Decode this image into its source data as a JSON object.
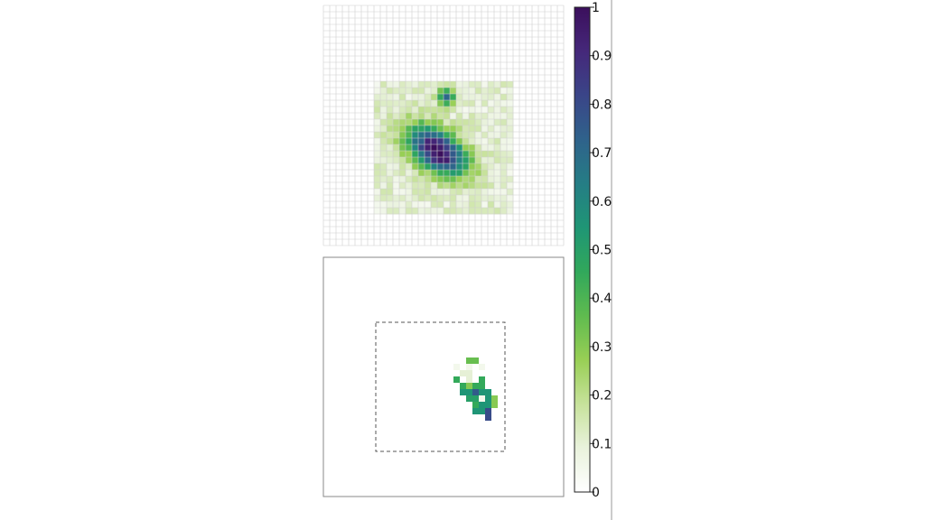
{
  "chart_data": [
    {
      "type": "heatmap",
      "panel": "top",
      "grid": true,
      "grid_size": [
        38,
        38
      ],
      "data_extent": {
        "cols": [
          8,
          29
        ],
        "rows": [
          12,
          32
        ]
      },
      "features": [
        {
          "kind": "elongated-blob",
          "center": [
            17.5,
            22.5
          ],
          "peak": 0.95,
          "tilt_deg": 35
        },
        {
          "kind": "small-blob",
          "center": [
            19,
            14
          ],
          "peak": 0.65
        }
      ],
      "background_level": 0.1,
      "value_range": [
        0,
        1
      ]
    },
    {
      "type": "heatmap",
      "panel": "bottom",
      "grid": false,
      "region_box": "dashed",
      "value_range": [
        0,
        1
      ],
      "cells": [
        [
          14,
          12,
          0.35
        ],
        [
          15,
          12,
          0.35
        ],
        [
          12,
          13,
          0.05
        ],
        [
          14,
          13,
          0.05
        ],
        [
          16,
          13,
          0.05
        ],
        [
          13,
          14,
          0.1
        ],
        [
          14,
          14,
          0.1
        ],
        [
          12,
          15,
          0.45
        ],
        [
          14,
          15,
          0.1
        ],
        [
          16,
          15,
          0.45
        ],
        [
          13,
          16,
          0.45
        ],
        [
          14,
          16,
          0.3
        ],
        [
          15,
          16,
          0.45
        ],
        [
          16,
          16,
          0.45
        ],
        [
          13,
          17,
          0.55
        ],
        [
          14,
          17,
          0.55
        ],
        [
          15,
          17,
          0.75
        ],
        [
          16,
          17,
          0.55
        ],
        [
          17,
          17,
          0.55
        ],
        [
          14,
          18,
          0.5
        ],
        [
          15,
          18,
          0.5
        ],
        [
          16,
          18,
          0.05
        ],
        [
          17,
          18,
          0.55
        ],
        [
          18,
          18,
          0.3
        ],
        [
          15,
          19,
          0.45
        ],
        [
          16,
          19,
          0.55
        ],
        [
          17,
          19,
          0.55
        ],
        [
          18,
          19,
          0.3
        ],
        [
          15,
          20,
          0.55
        ],
        [
          16,
          20,
          0.55
        ],
        [
          17,
          20,
          0.8
        ],
        [
          17,
          21,
          0.8
        ]
      ]
    }
  ],
  "colorbar": {
    "min": 0,
    "max": 1,
    "ticks": [
      "0",
      "0.1",
      "0.2",
      "0.3",
      "0.4",
      "0.5",
      "0.6",
      "0.7",
      "0.8",
      "0.9",
      "1"
    ],
    "colormap": [
      "#ffffff",
      "#e9f2dc",
      "#c7e29b",
      "#98cf55",
      "#5fbb4f",
      "#31a85b",
      "#1f9675",
      "#257d85",
      "#2f628b",
      "#3a4588",
      "#45287a",
      "#3b0f5c"
    ]
  }
}
